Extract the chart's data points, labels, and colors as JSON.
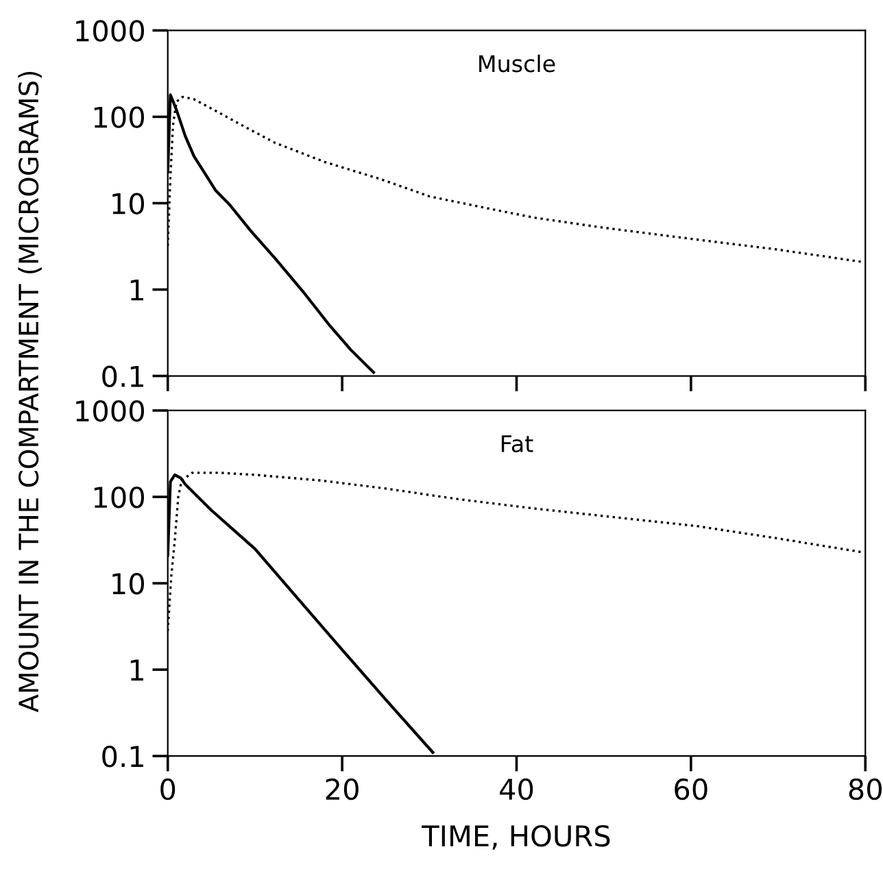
{
  "chart_data": [
    {
      "type": "line",
      "annotations": [
        "Muscle"
      ],
      "ylabel": "AMOUNT IN THE COMPARTMENT (MICROGRAMS)",
      "log": "y",
      "xlim": [
        0,
        80
      ],
      "xticks": [
        0,
        20,
        40,
        60,
        80
      ],
      "ylim": [
        0.1,
        1000
      ],
      "yticks": [
        0.1,
        1,
        10,
        100,
        1000
      ],
      "tick_labels": "y",
      "grid": false,
      "legend": false,
      "marker": "none",
      "series": [
        {
          "color": "#000000",
          "line_style": "solid",
          "x": [
            0,
            0.3,
            1,
            2,
            3,
            4.4,
            5.5,
            7.1,
            9.5,
            12.3,
            15.5,
            18.6,
            21,
            23.6
          ],
          "values": [
            23,
            180,
            120,
            60,
            35,
            21,
            14,
            9.6,
            4.8,
            2.3,
            0.95,
            0.38,
            0.2,
            0.11
          ]
        },
        {
          "color": "#000000",
          "line_style": "dotted",
          "x": [
            0,
            0.3,
            0.6,
            1,
            1.7,
            3,
            6,
            9,
            12.3,
            18,
            24.4,
            30,
            36,
            42,
            50,
            60.6,
            70,
            79.5
          ],
          "values": [
            3.2,
            20,
            80,
            150,
            170,
            160,
            110,
            75,
            50,
            30,
            19,
            12,
            9,
            6.8,
            5.2,
            3.8,
            2.9,
            2.1
          ]
        }
      ]
    },
    {
      "type": "line",
      "annotations": [
        "Fat"
      ],
      "xlabel": "TIME, HOURS",
      "log": "y",
      "xlim": [
        0,
        80
      ],
      "xticks": [
        0,
        20,
        40,
        60,
        80
      ],
      "ylim": [
        0.1,
        1000
      ],
      "yticks": [
        0.1,
        1,
        10,
        100,
        1000
      ],
      "grid": false,
      "legend": false,
      "marker": "none",
      "series": [
        {
          "color": "#000000",
          "line_style": "solid",
          "x": [
            0,
            0.3,
            0.8,
            1.5,
            2,
            5,
            10,
            15,
            20,
            25,
            30.4
          ],
          "values": [
            21,
            150,
            180,
            165,
            140,
            70,
            25,
            6.5,
            1.7,
            0.45,
            0.11
          ]
        },
        {
          "color": "#000000",
          "line_style": "dotted",
          "x": [
            0,
            0.4,
            0.8,
            1.2,
            1.6,
            2.8,
            6,
            10,
            17.5,
            25,
            33,
            41.7,
            50,
            60.6,
            70,
            79.5
          ],
          "values": [
            2.8,
            12,
            31,
            100,
            155,
            190,
            190,
            180,
            155,
            125,
            95,
            74,
            60,
            46,
            33,
            23
          ]
        }
      ]
    }
  ]
}
